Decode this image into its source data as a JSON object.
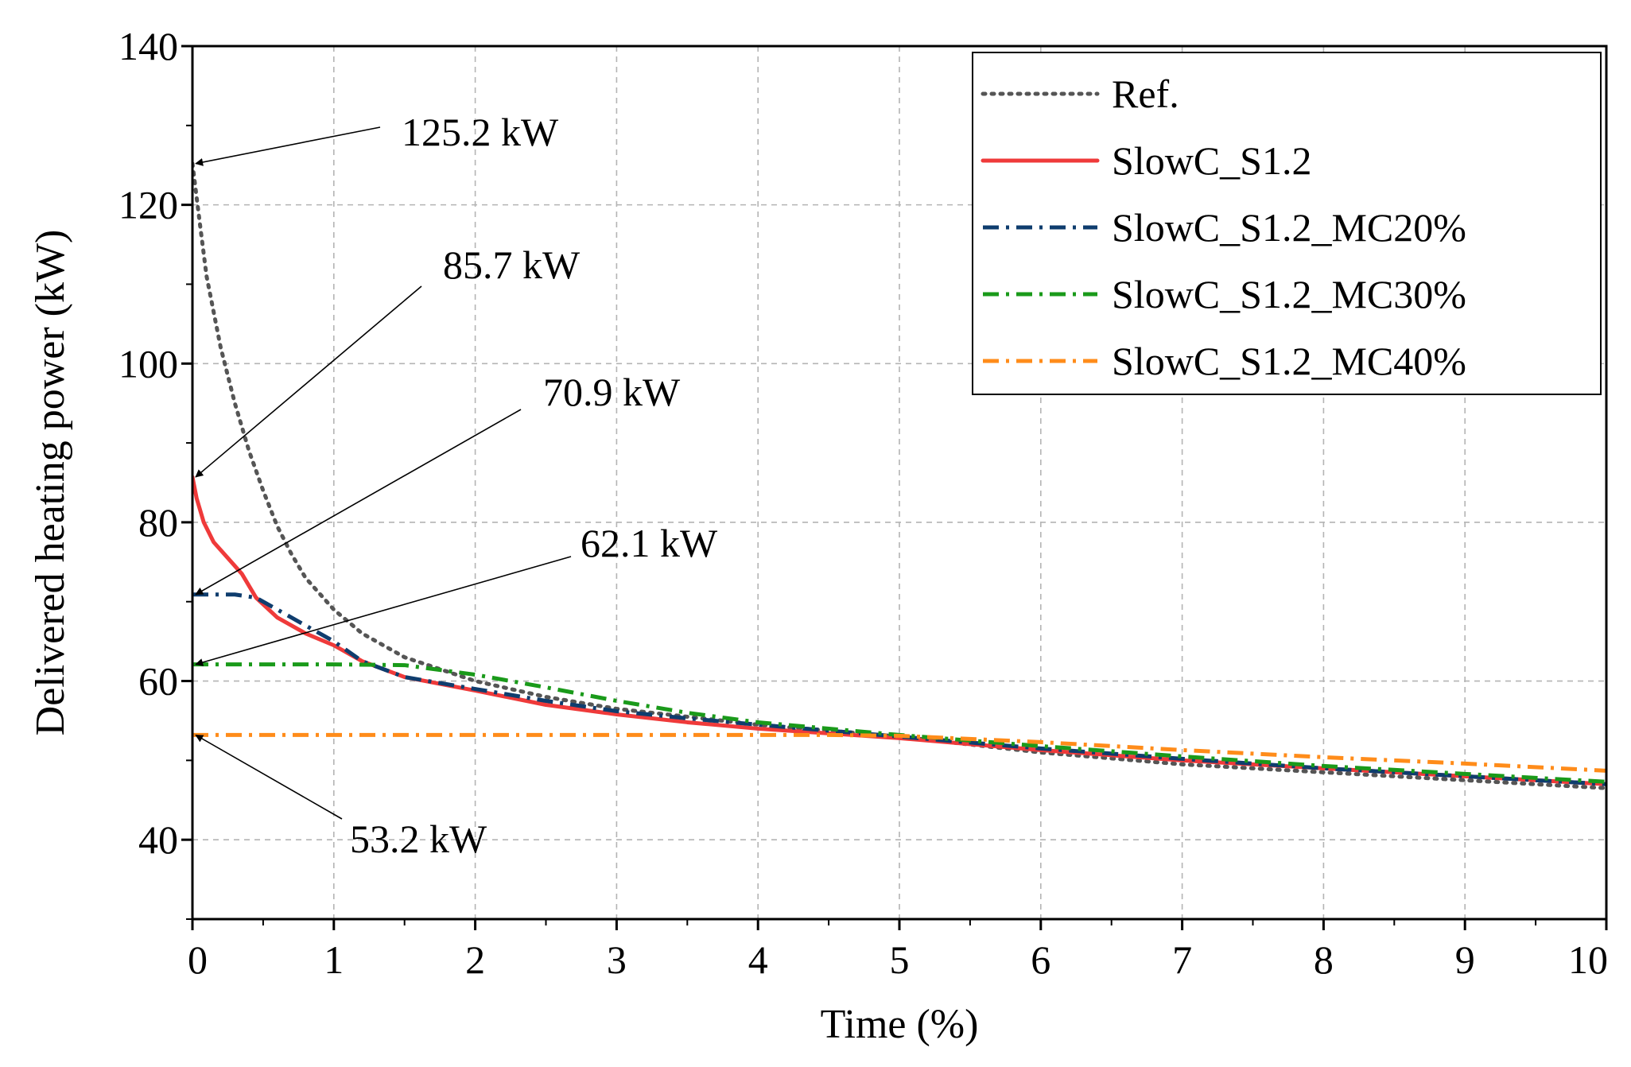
{
  "chart_data": {
    "type": "line",
    "title": "",
    "xlabel": "Time (%)",
    "ylabel": "Delivered heating power (kW)",
    "xlim": [
      0,
      10
    ],
    "ylim": [
      30,
      140
    ],
    "xticks": [
      0,
      1,
      2,
      3,
      4,
      5,
      6,
      7,
      8,
      9,
      10
    ],
    "yticks": [
      40,
      60,
      80,
      100,
      120,
      140
    ],
    "grid": true,
    "legend_position": "top-right",
    "series": [
      {
        "name": "Ref.",
        "style": "dotted",
        "color": "#555555",
        "x": [
          0,
          0.05,
          0.1,
          0.2,
          0.3,
          0.4,
          0.5,
          0.6,
          0.7,
          0.8,
          1.0,
          1.2,
          1.5,
          2.0,
          2.5,
          3.0,
          3.5,
          4.0,
          5.0,
          6.0,
          7.0,
          8.0,
          9.0,
          10.0
        ],
        "y": [
          125.2,
          118,
          111,
          102,
          95,
          89,
          84,
          79.5,
          76,
          73,
          69,
          66,
          63,
          60,
          58,
          56.5,
          55.5,
          54.5,
          53,
          51,
          49.5,
          48.5,
          47.5,
          46.5
        ]
      },
      {
        "name": "SlowC_S1.2",
        "style": "solid",
        "color": "#ef3a3a",
        "x": [
          0,
          0.03,
          0.08,
          0.15,
          0.25,
          0.35,
          0.45,
          0.6,
          0.8,
          1.0,
          1.2,
          1.5,
          2.0,
          2.5,
          3.0,
          3.5,
          4.0,
          5.0,
          6.0,
          7.0,
          8.0,
          9.0,
          10.0
        ],
        "y": [
          85.7,
          83,
          80,
          77.5,
          75.5,
          73.5,
          70.5,
          68,
          66,
          64.5,
          62.5,
          60.5,
          58.8,
          57,
          55.8,
          54.8,
          54,
          52.8,
          51.3,
          50,
          49,
          48,
          47
        ]
      },
      {
        "name": "SlowC_S1.2_MC20%",
        "style": "dash-dot",
        "color": "#0f3d6e",
        "x": [
          0,
          0.3,
          0.45,
          0.6,
          0.8,
          1.0,
          1.2,
          1.5,
          2.0,
          2.5,
          3.0,
          3.5,
          4.0,
          5.0,
          6.0,
          7.0,
          8.0,
          9.0,
          10.0
        ],
        "y": [
          70.9,
          70.9,
          70.5,
          69,
          67,
          65,
          62.5,
          60.5,
          59,
          57.5,
          56.2,
          55.3,
          54.5,
          53,
          51.5,
          50.2,
          49,
          48,
          47
        ]
      },
      {
        "name": "SlowC_S1.2_MC30%",
        "style": "dash-dot",
        "color": "#1a9a1a",
        "x": [
          0,
          1.0,
          1.5,
          2.0,
          2.5,
          3.0,
          3.5,
          4.0,
          5.0,
          6.0,
          7.0,
          8.0,
          9.0,
          10.0
        ],
        "y": [
          62.1,
          62.1,
          62,
          60.8,
          59.2,
          57.5,
          56,
          54.8,
          53.2,
          51.8,
          50.5,
          49.3,
          48.3,
          47.3
        ]
      },
      {
        "name": "SlowC_S1.2_MC40%",
        "style": "dash-dot",
        "color": "#ff8c1a",
        "x": [
          0,
          1,
          2,
          3,
          4,
          4.5,
          5,
          6,
          7,
          8,
          9,
          10
        ],
        "y": [
          53.2,
          53.2,
          53.2,
          53.2,
          53.2,
          53.2,
          53.1,
          52.3,
          51.3,
          50.4,
          49.6,
          48.7
        ]
      }
    ],
    "annotations": [
      {
        "text": "125.2 kW",
        "x": 0,
        "y": 125.2
      },
      {
        "text": "85.7 kW",
        "x": 0,
        "y": 85.7
      },
      {
        "text": "70.9 kW",
        "x": 0,
        "y": 70.9
      },
      {
        "text": "62.1 kW",
        "x": 0,
        "y": 62.1
      },
      {
        "text": "53.2 kW",
        "x": 0,
        "y": 53.2
      }
    ]
  }
}
